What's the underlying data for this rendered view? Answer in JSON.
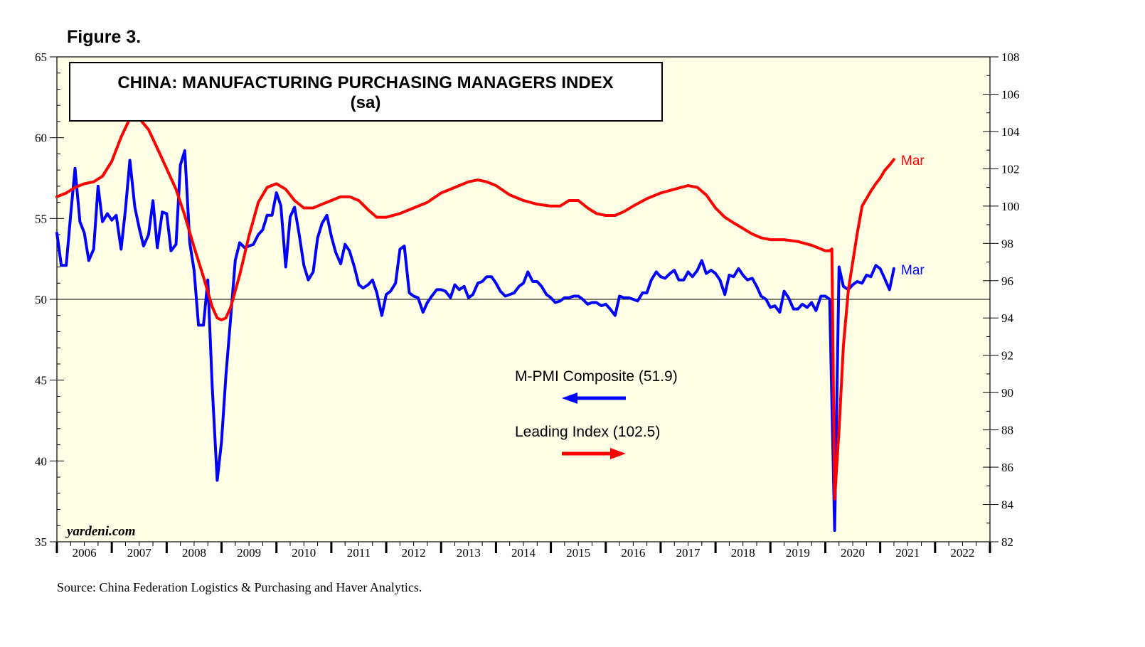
{
  "figure_label": "Figure 3.",
  "source": "Source: China Federation Logistics & Purchasing and Haver Analytics.",
  "colors": {
    "plot_background": "#FFFFE5",
    "pmi": "#0000FF",
    "leading": "#FF0000",
    "axis": "#000000"
  },
  "chart_data": {
    "type": "line",
    "title": "CHINA: MANUFACTURING PURCHASING MANAGERS INDEX",
    "subtitle": "(sa)",
    "watermark": "yardeni.com",
    "x_range": [
      2006.0,
      2023.0
    ],
    "x_tick_labels": [
      "2006",
      "2007",
      "2008",
      "2009",
      "2010",
      "2011",
      "2012",
      "2013",
      "2014",
      "2015",
      "2016",
      "2017",
      "2018",
      "2019",
      "2020",
      "2021",
      "2022"
    ],
    "left_axis": {
      "range": [
        35,
        65
      ],
      "major": [
        35,
        40,
        45,
        50,
        55,
        60,
        65
      ],
      "minor_step": 1
    },
    "right_axis": {
      "range": [
        82,
        108
      ],
      "major": [
        82,
        84,
        86,
        88,
        90,
        92,
        94,
        96,
        98,
        100,
        102,
        104,
        106,
        108
      ],
      "minor_step": 1
    },
    "reference_line": 50,
    "legend": [
      {
        "label": "M-PMI Composite (51.9)",
        "arrow": "left",
        "series": "pmi"
      },
      {
        "label": "Leading Index (102.5)",
        "arrow": "right",
        "series": "leading"
      }
    ],
    "series": [
      {
        "id": "pmi",
        "name": "M-PMI Composite",
        "axis": "left",
        "end_label": "Mar",
        "points": [
          [
            2006.0,
            54.1
          ],
          [
            2006.08,
            52.1
          ],
          [
            2006.17,
            52.1
          ],
          [
            2006.25,
            55.2
          ],
          [
            2006.33,
            58.1
          ],
          [
            2006.42,
            54.8
          ],
          [
            2006.5,
            54.1
          ],
          [
            2006.58,
            52.4
          ],
          [
            2006.67,
            53.1
          ],
          [
            2006.75,
            57.0
          ],
          [
            2006.83,
            54.8
          ],
          [
            2006.92,
            55.3
          ],
          [
            2007.0,
            54.9
          ],
          [
            2007.08,
            55.2
          ],
          [
            2007.17,
            53.1
          ],
          [
            2007.25,
            55.6
          ],
          [
            2007.33,
            58.6
          ],
          [
            2007.42,
            55.7
          ],
          [
            2007.5,
            54.4
          ],
          [
            2007.58,
            53.3
          ],
          [
            2007.67,
            54.0
          ],
          [
            2007.75,
            56.1
          ],
          [
            2007.83,
            53.2
          ],
          [
            2007.92,
            55.4
          ],
          [
            2008.0,
            55.3
          ],
          [
            2008.08,
            53.0
          ],
          [
            2008.17,
            53.4
          ],
          [
            2008.25,
            58.3
          ],
          [
            2008.33,
            59.2
          ],
          [
            2008.42,
            53.5
          ],
          [
            2008.5,
            51.8
          ],
          [
            2008.58,
            48.4
          ],
          [
            2008.67,
            48.4
          ],
          [
            2008.75,
            51.2
          ],
          [
            2008.83,
            44.6
          ],
          [
            2008.92,
            38.8
          ],
          [
            2009.0,
            41.2
          ],
          [
            2009.08,
            45.3
          ],
          [
            2009.17,
            49.0
          ],
          [
            2009.25,
            52.4
          ],
          [
            2009.33,
            53.5
          ],
          [
            2009.42,
            53.2
          ],
          [
            2009.5,
            53.3
          ],
          [
            2009.58,
            53.4
          ],
          [
            2009.67,
            54.0
          ],
          [
            2009.75,
            54.3
          ],
          [
            2009.83,
            55.2
          ],
          [
            2009.92,
            55.2
          ],
          [
            2010.0,
            56.6
          ],
          [
            2010.08,
            55.8
          ],
          [
            2010.17,
            52.0
          ],
          [
            2010.25,
            55.1
          ],
          [
            2010.33,
            55.7
          ],
          [
            2010.42,
            53.9
          ],
          [
            2010.5,
            52.1
          ],
          [
            2010.58,
            51.2
          ],
          [
            2010.67,
            51.7
          ],
          [
            2010.75,
            53.8
          ],
          [
            2010.83,
            54.7
          ],
          [
            2010.92,
            55.2
          ],
          [
            2011.0,
            53.9
          ],
          [
            2011.08,
            52.9
          ],
          [
            2011.17,
            52.2
          ],
          [
            2011.25,
            53.4
          ],
          [
            2011.33,
            53.0
          ],
          [
            2011.42,
            52.0
          ],
          [
            2011.5,
            50.9
          ],
          [
            2011.58,
            50.7
          ],
          [
            2011.67,
            50.9
          ],
          [
            2011.75,
            51.2
          ],
          [
            2011.83,
            50.4
          ],
          [
            2011.92,
            49.0
          ],
          [
            2012.0,
            50.3
          ],
          [
            2012.08,
            50.5
          ],
          [
            2012.17,
            51.0
          ],
          [
            2012.25,
            53.1
          ],
          [
            2012.33,
            53.3
          ],
          [
            2012.42,
            50.4
          ],
          [
            2012.5,
            50.2
          ],
          [
            2012.58,
            50.1
          ],
          [
            2012.67,
            49.2
          ],
          [
            2012.75,
            49.8
          ],
          [
            2012.83,
            50.2
          ],
          [
            2012.92,
            50.6
          ],
          [
            2013.0,
            50.6
          ],
          [
            2013.08,
            50.5
          ],
          [
            2013.17,
            50.1
          ],
          [
            2013.25,
            50.9
          ],
          [
            2013.33,
            50.6
          ],
          [
            2013.42,
            50.8
          ],
          [
            2013.5,
            50.1
          ],
          [
            2013.58,
            50.3
          ],
          [
            2013.67,
            51.0
          ],
          [
            2013.75,
            51.1
          ],
          [
            2013.83,
            51.4
          ],
          [
            2013.92,
            51.4
          ],
          [
            2014.0,
            51.0
          ],
          [
            2014.08,
            50.5
          ],
          [
            2014.17,
            50.2
          ],
          [
            2014.25,
            50.3
          ],
          [
            2014.33,
            50.4
          ],
          [
            2014.42,
            50.8
          ],
          [
            2014.5,
            51.0
          ],
          [
            2014.58,
            51.7
          ],
          [
            2014.67,
            51.1
          ],
          [
            2014.75,
            51.1
          ],
          [
            2014.83,
            50.8
          ],
          [
            2014.92,
            50.3
          ],
          [
            2015.0,
            50.1
          ],
          [
            2015.08,
            49.8
          ],
          [
            2015.17,
            49.9
          ],
          [
            2015.25,
            50.1
          ],
          [
            2015.33,
            50.1
          ],
          [
            2015.42,
            50.2
          ],
          [
            2015.5,
            50.2
          ],
          [
            2015.58,
            50.0
          ],
          [
            2015.67,
            49.7
          ],
          [
            2015.75,
            49.8
          ],
          [
            2015.83,
            49.8
          ],
          [
            2015.92,
            49.6
          ],
          [
            2016.0,
            49.7
          ],
          [
            2016.08,
            49.4
          ],
          [
            2016.17,
            49.0
          ],
          [
            2016.25,
            50.2
          ],
          [
            2016.33,
            50.1
          ],
          [
            2016.42,
            50.1
          ],
          [
            2016.5,
            50.0
          ],
          [
            2016.58,
            49.9
          ],
          [
            2016.67,
            50.4
          ],
          [
            2016.75,
            50.4
          ],
          [
            2016.83,
            51.2
          ],
          [
            2016.92,
            51.7
          ],
          [
            2017.0,
            51.4
          ],
          [
            2017.08,
            51.3
          ],
          [
            2017.17,
            51.6
          ],
          [
            2017.25,
            51.8
          ],
          [
            2017.33,
            51.2
          ],
          [
            2017.42,
            51.2
          ],
          [
            2017.5,
            51.7
          ],
          [
            2017.58,
            51.4
          ],
          [
            2017.67,
            51.8
          ],
          [
            2017.75,
            52.4
          ],
          [
            2017.83,
            51.6
          ],
          [
            2017.92,
            51.8
          ],
          [
            2018.0,
            51.6
          ],
          [
            2018.08,
            51.2
          ],
          [
            2018.17,
            50.3
          ],
          [
            2018.25,
            51.5
          ],
          [
            2018.33,
            51.4
          ],
          [
            2018.42,
            51.9
          ],
          [
            2018.5,
            51.5
          ],
          [
            2018.58,
            51.2
          ],
          [
            2018.67,
            51.3
          ],
          [
            2018.75,
            50.8
          ],
          [
            2018.83,
            50.2
          ],
          [
            2018.92,
            50.0
          ],
          [
            2019.0,
            49.5
          ],
          [
            2019.08,
            49.6
          ],
          [
            2019.17,
            49.2
          ],
          [
            2019.25,
            50.5
          ],
          [
            2019.33,
            50.1
          ],
          [
            2019.42,
            49.4
          ],
          [
            2019.5,
            49.4
          ],
          [
            2019.58,
            49.7
          ],
          [
            2019.67,
            49.5
          ],
          [
            2019.75,
            49.8
          ],
          [
            2019.83,
            49.3
          ],
          [
            2019.92,
            50.2
          ],
          [
            2020.0,
            50.2
          ],
          [
            2020.08,
            50.0
          ],
          [
            2020.17,
            35.7
          ],
          [
            2020.25,
            52.0
          ],
          [
            2020.33,
            50.8
          ],
          [
            2020.42,
            50.6
          ],
          [
            2020.5,
            50.9
          ],
          [
            2020.58,
            51.1
          ],
          [
            2020.67,
            51.0
          ],
          [
            2020.75,
            51.5
          ],
          [
            2020.83,
            51.4
          ],
          [
            2020.92,
            52.1
          ],
          [
            2021.0,
            51.9
          ],
          [
            2021.08,
            51.3
          ],
          [
            2021.17,
            50.6
          ],
          [
            2021.25,
            51.9
          ]
        ]
      },
      {
        "id": "leading",
        "name": "Leading Index",
        "axis": "right",
        "end_label": "Mar",
        "points": [
          [
            2006.0,
            100.5
          ],
          [
            2006.17,
            100.7
          ],
          [
            2006.33,
            101.0
          ],
          [
            2006.5,
            101.2
          ],
          [
            2006.67,
            101.3
          ],
          [
            2006.83,
            101.6
          ],
          [
            2007.0,
            102.4
          ],
          [
            2007.17,
            103.7
          ],
          [
            2007.33,
            104.7
          ],
          [
            2007.42,
            104.8
          ],
          [
            2007.5,
            104.7
          ],
          [
            2007.67,
            104.1
          ],
          [
            2007.83,
            103.1
          ],
          [
            2008.0,
            102.0
          ],
          [
            2008.17,
            100.9
          ],
          [
            2008.33,
            99.5
          ],
          [
            2008.5,
            97.8
          ],
          [
            2008.67,
            96.2
          ],
          [
            2008.83,
            94.6
          ],
          [
            2008.92,
            94.0
          ],
          [
            2009.0,
            93.9
          ],
          [
            2009.08,
            94.0
          ],
          [
            2009.17,
            94.6
          ],
          [
            2009.33,
            96.3
          ],
          [
            2009.5,
            98.4
          ],
          [
            2009.67,
            100.2
          ],
          [
            2009.83,
            101.0
          ],
          [
            2010.0,
            101.2
          ],
          [
            2010.17,
            100.9
          ],
          [
            2010.33,
            100.3
          ],
          [
            2010.5,
            99.9
          ],
          [
            2010.67,
            99.9
          ],
          [
            2010.83,
            100.1
          ],
          [
            2011.0,
            100.3
          ],
          [
            2011.17,
            100.5
          ],
          [
            2011.33,
            100.5
          ],
          [
            2011.5,
            100.3
          ],
          [
            2011.67,
            99.8
          ],
          [
            2011.83,
            99.4
          ],
          [
            2012.0,
            99.4
          ],
          [
            2012.25,
            99.6
          ],
          [
            2012.5,
            99.9
          ],
          [
            2012.75,
            100.2
          ],
          [
            2013.0,
            100.7
          ],
          [
            2013.25,
            101.0
          ],
          [
            2013.5,
            101.3
          ],
          [
            2013.67,
            101.4
          ],
          [
            2013.83,
            101.3
          ],
          [
            2014.0,
            101.1
          ],
          [
            2014.25,
            100.6
          ],
          [
            2014.5,
            100.3
          ],
          [
            2014.75,
            100.1
          ],
          [
            2015.0,
            100.0
          ],
          [
            2015.17,
            100.0
          ],
          [
            2015.33,
            100.3
          ],
          [
            2015.5,
            100.3
          ],
          [
            2015.67,
            99.9
          ],
          [
            2015.83,
            99.6
          ],
          [
            2016.0,
            99.5
          ],
          [
            2016.17,
            99.5
          ],
          [
            2016.33,
            99.7
          ],
          [
            2016.5,
            100.0
          ],
          [
            2016.75,
            100.4
          ],
          [
            2017.0,
            100.7
          ],
          [
            2017.25,
            100.9
          ],
          [
            2017.5,
            101.1
          ],
          [
            2017.67,
            101.0
          ],
          [
            2017.83,
            100.6
          ],
          [
            2018.0,
            99.9
          ],
          [
            2018.17,
            99.4
          ],
          [
            2018.33,
            99.1
          ],
          [
            2018.5,
            98.8
          ],
          [
            2018.67,
            98.5
          ],
          [
            2018.83,
            98.3
          ],
          [
            2019.0,
            98.2
          ],
          [
            2019.25,
            98.2
          ],
          [
            2019.5,
            98.1
          ],
          [
            2019.75,
            97.9
          ],
          [
            2019.92,
            97.7
          ],
          [
            2020.0,
            97.6
          ],
          [
            2020.08,
            97.6
          ],
          [
            2020.12,
            97.7
          ],
          [
            2020.17,
            84.3
          ],
          [
            2020.25,
            88.0
          ],
          [
            2020.33,
            92.5
          ],
          [
            2020.42,
            95.5
          ],
          [
            2020.5,
            97.0
          ],
          [
            2020.58,
            98.5
          ],
          [
            2020.67,
            100.0
          ],
          [
            2020.75,
            100.4
          ],
          [
            2020.83,
            100.8
          ],
          [
            2020.92,
            101.2
          ],
          [
            2021.0,
            101.5
          ],
          [
            2021.08,
            101.9
          ],
          [
            2021.17,
            102.2
          ],
          [
            2021.25,
            102.5
          ]
        ]
      }
    ]
  }
}
